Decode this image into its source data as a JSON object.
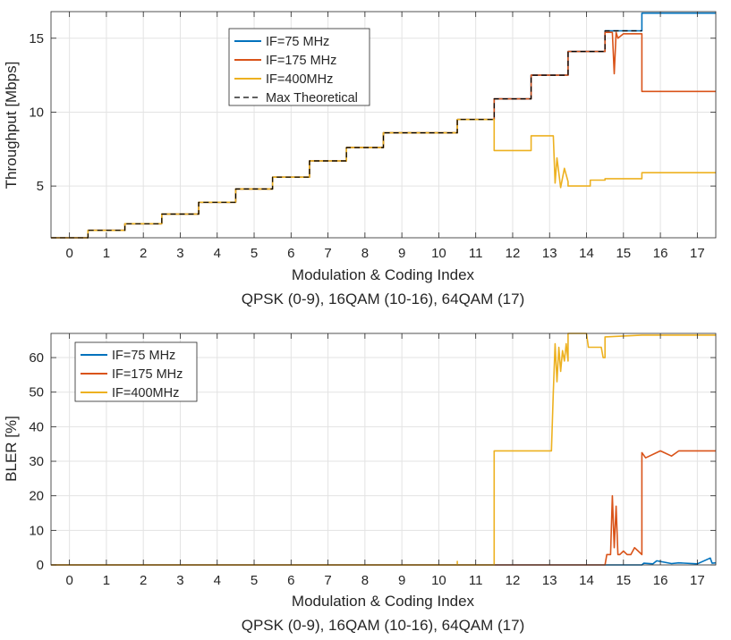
{
  "chart_data": [
    {
      "type": "line",
      "ylabel": "Throughput [Mbps]",
      "xlabel": "Modulation & Coding Index",
      "xlabel2": "QPSK (0-9), 16QAM (10-16), 64QAM (17)",
      "xlim": [
        -0.5,
        17.5
      ],
      "ylim": [
        1.5,
        16.8
      ],
      "xticks": [
        "0",
        "1",
        "2",
        "3",
        "4",
        "5",
        "6",
        "7",
        "8",
        "9",
        "10",
        "11",
        "12",
        "13",
        "14",
        "15",
        "16",
        "17"
      ],
      "yticks": [
        5,
        10,
        15
      ],
      "legend_position": "top-center",
      "series": [
        {
          "name": "IF=75 MHz",
          "color": "#0072BD",
          "x": [
            -0.5,
            0.5,
            0.5,
            1.5,
            1.5,
            2.5,
            2.5,
            3.5,
            3.5,
            4.5,
            4.5,
            5.5,
            5.5,
            6.5,
            6.5,
            7.5,
            7.5,
            8.5,
            8.5,
            10.5,
            10.5,
            11.5,
            11.5,
            12.5,
            12.5,
            13.5,
            13.5,
            14.5,
            14.5,
            15.5,
            15.5,
            17.5
          ],
          "y": [
            1.5,
            1.5,
            2,
            2,
            2.45,
            2.45,
            3.1,
            3.1,
            3.9,
            3.9,
            4.8,
            4.8,
            5.6,
            5.6,
            6.7,
            6.7,
            7.6,
            7.6,
            8.6,
            8.6,
            9.5,
            9.5,
            10.9,
            10.9,
            12.5,
            12.5,
            14.1,
            14.1,
            15.5,
            15.5,
            16.7,
            16.7
          ]
        },
        {
          "name": "IF=175 MHz",
          "color": "#D95319",
          "x": [
            -0.5,
            0.5,
            0.5,
            1.5,
            1.5,
            2.5,
            2.5,
            3.5,
            3.5,
            4.5,
            4.5,
            5.5,
            5.5,
            6.5,
            6.5,
            7.5,
            7.5,
            8.5,
            8.5,
            10.5,
            10.5,
            11.5,
            11.5,
            12.5,
            12.5,
            13.5,
            13.5,
            14.5,
            14.5,
            14.7,
            14.75,
            14.8,
            14.85,
            15.0,
            15.5,
            15.5,
            17.5
          ],
          "y": [
            1.5,
            1.5,
            2,
            2,
            2.45,
            2.45,
            3.1,
            3.1,
            3.9,
            3.9,
            4.8,
            4.8,
            5.6,
            5.6,
            6.7,
            6.7,
            7.6,
            7.6,
            8.6,
            8.6,
            9.5,
            9.5,
            10.9,
            10.9,
            12.5,
            12.5,
            14.1,
            14.1,
            15.4,
            15.4,
            12.6,
            15.4,
            15.0,
            15.3,
            15.3,
            11.4,
            11.4
          ]
        },
        {
          "name": "IF=400MHz",
          "color": "#EDB120",
          "x": [
            -0.5,
            0.5,
            0.5,
            1.5,
            1.5,
            2.5,
            2.5,
            3.5,
            3.5,
            4.5,
            4.5,
            5.5,
            5.5,
            6.5,
            6.5,
            7.5,
            7.5,
            8.5,
            8.5,
            10.5,
            10.5,
            11.5,
            11.5,
            12.5,
            12.5,
            13.1,
            13.15,
            13.2,
            13.3,
            13.4,
            13.5,
            13.5,
            14.1,
            14.1,
            14.5,
            14.5,
            15.5,
            15.5,
            17.5
          ],
          "y": [
            1.5,
            1.5,
            2,
            2,
            2.45,
            2.45,
            3.1,
            3.1,
            3.9,
            3.9,
            4.8,
            4.8,
            5.6,
            5.6,
            6.7,
            6.7,
            7.6,
            7.6,
            8.6,
            8.6,
            9.5,
            9.5,
            7.4,
            7.4,
            8.4,
            8.4,
            5.2,
            6.9,
            4.9,
            6.2,
            5.3,
            5.0,
            5.0,
            5.4,
            5.4,
            5.5,
            5.5,
            5.9,
            5.9
          ]
        },
        {
          "name": "Max Theoretical",
          "color": "#000000",
          "dashed": true,
          "x": [
            -0.5,
            0.5,
            0.5,
            1.5,
            1.5,
            2.5,
            2.5,
            3.5,
            3.5,
            4.5,
            4.5,
            5.5,
            5.5,
            6.5,
            6.5,
            7.5,
            7.5,
            8.5,
            8.5,
            10.5,
            10.5,
            11.5,
            11.5,
            12.5,
            12.5,
            13.5,
            13.5,
            14.5,
            14.5,
            15.5
          ],
          "y": [
            1.5,
            1.5,
            2,
            2,
            2.45,
            2.45,
            3.1,
            3.1,
            3.9,
            3.9,
            4.8,
            4.8,
            5.6,
            5.6,
            6.7,
            6.7,
            7.6,
            7.6,
            8.6,
            8.6,
            9.5,
            9.5,
            10.9,
            10.9,
            12.5,
            12.5,
            14.1,
            14.1,
            15.5,
            15.5
          ]
        }
      ]
    },
    {
      "type": "line",
      "ylabel": "BLER [%]",
      "xlabel": "Modulation & Coding Index",
      "xlabel2": "QPSK (0-9), 16QAM (10-16), 64QAM (17)",
      "xlim": [
        -0.5,
        17.5
      ],
      "ylim": [
        0,
        67
      ],
      "xticks": [
        "0",
        "1",
        "2",
        "3",
        "4",
        "5",
        "6",
        "7",
        "8",
        "9",
        "10",
        "11",
        "12",
        "13",
        "14",
        "15",
        "16",
        "17"
      ],
      "yticks": [
        0,
        10,
        20,
        30,
        40,
        50,
        60
      ],
      "legend_position": "top-left",
      "series": [
        {
          "name": "IF=75 MHz",
          "color": "#0072BD",
          "x": [
            -0.5,
            15.5,
            15.55,
            15.8,
            15.9,
            16.3,
            16.5,
            17.0,
            17.35,
            17.4,
            17.5
          ],
          "y": [
            0,
            0,
            0.5,
            0.3,
            1.2,
            0.4,
            0.6,
            0.3,
            2.0,
            0.5,
            0.6
          ]
        },
        {
          "name": "IF=175 MHz",
          "color": "#D95319",
          "x": [
            -0.5,
            14.5,
            14.55,
            14.65,
            14.7,
            14.75,
            14.8,
            14.85,
            14.9,
            15.0,
            15.1,
            15.2,
            15.3,
            15.4,
            15.5,
            15.5,
            15.6,
            16.0,
            16.3,
            16.5,
            17.0,
            17.5
          ],
          "y": [
            0,
            0,
            3,
            3,
            20,
            5,
            17,
            3,
            3,
            4,
            3,
            3,
            5,
            4,
            3,
            32.5,
            31,
            33,
            31.5,
            33,
            33,
            33
          ]
        },
        {
          "name": "IF=400MHz",
          "color": "#EDB120",
          "x": [
            -0.5,
            10.5,
            10.5,
            10.5,
            11.5,
            11.5,
            13.05,
            13.1,
            13.15,
            13.2,
            13.25,
            13.3,
            13.35,
            13.4,
            13.45,
            13.5,
            13.5,
            14.0,
            14.05,
            14.4,
            14.45,
            14.5,
            14.5,
            15.5,
            17.5
          ],
          "y": [
            0,
            0,
            1,
            0,
            0,
            33,
            33,
            50,
            64,
            53,
            63,
            56,
            62,
            59,
            64,
            59,
            67,
            67,
            63,
            63,
            60,
            60,
            66,
            66.5,
            66.5
          ]
        }
      ]
    }
  ]
}
